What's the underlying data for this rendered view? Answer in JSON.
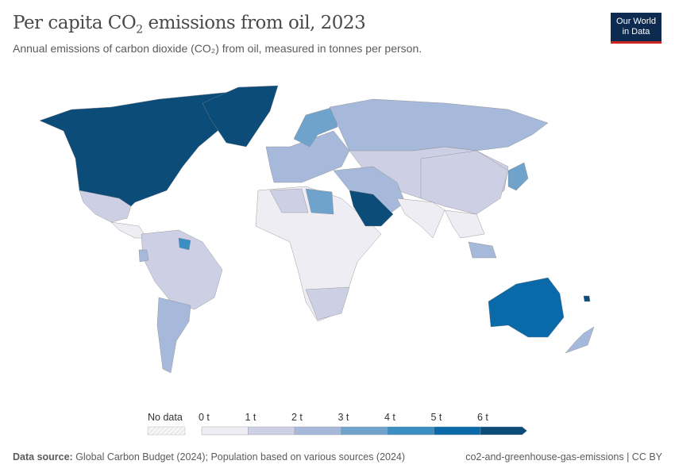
{
  "header": {
    "title_main": "Per capita CO",
    "title_sub": "2",
    "title_rest": " emissions from oil, 2023",
    "subtitle": "Annual emissions of carbon dioxide (CO₂) from oil, measured in tonnes per person.",
    "logo_line1": "Our World",
    "logo_line2": "in Data"
  },
  "legend": {
    "no_data_label": "No data",
    "ticks": [
      "0 t",
      "1 t",
      "2 t",
      "3 t",
      "4 t",
      "5 t",
      "6 t"
    ],
    "bin_colors": [
      "#eeedf4",
      "#cdd0e5",
      "#a6b9da",
      "#70a3cc",
      "#3a8ec3",
      "#0a69a8",
      "#0c4c78"
    ],
    "no_data_color": "#f2f2f2"
  },
  "map_fills": {
    "canada_usa": 6,
    "greenland": 6,
    "mexico": 1,
    "central_america": 0,
    "south_america_north": 1,
    "guyana_suriname": 4,
    "ecuador": 2,
    "southern_cone": 2,
    "africa": 0,
    "libya": 3,
    "algeria": 1,
    "southern_africa": 1,
    "europe": 2,
    "scandinavia": 3,
    "russia": 2,
    "central_asia": 1,
    "china": 1,
    "middle_east": 2,
    "saudi_arabia": 6,
    "india": 0,
    "southeast_asia": 0,
    "malaysia": 2,
    "japan_korea": 3,
    "australia": 5,
    "new_zealand": 2,
    "new_caledonia": 6
  },
  "footer": {
    "source_label": "Data source:",
    "source_text": " Global Carbon Budget (2024); Population based on various sources (2024)",
    "slug": "co2-and-greenhouse-gas-emissions | CC BY"
  }
}
